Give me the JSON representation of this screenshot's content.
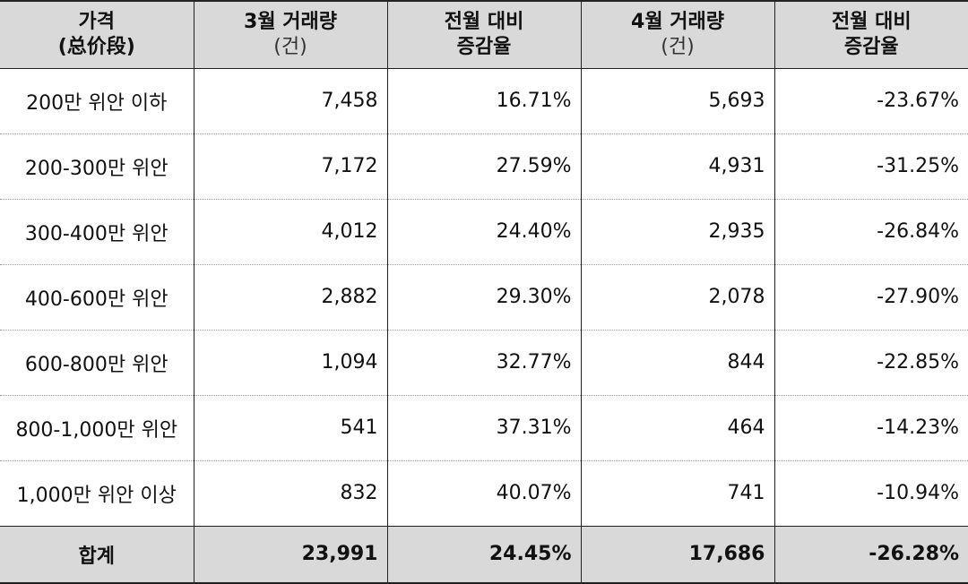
{
  "header": {
    "col0": {
      "line1": "가격",
      "line2": "(总价段)"
    },
    "col1": {
      "line1": "3월 거래량",
      "line2": "(건)"
    },
    "col2": {
      "line1": "전월 대비",
      "line2": "증감율"
    },
    "col3": {
      "line1": "4월 거래량",
      "line2": "(건)"
    },
    "col4": {
      "line1": "전월 대비",
      "line2": "증감율"
    }
  },
  "rows": [
    {
      "label": "200만 위안 이하",
      "mar": "7,458",
      "mar_chg": "16.71%",
      "apr": "5,693",
      "apr_chg": "-23.67%"
    },
    {
      "label": "200-300만 위안",
      "mar": "7,172",
      "mar_chg": "27.59%",
      "apr": "4,931",
      "apr_chg": "-31.25%"
    },
    {
      "label": "300-400만 위안",
      "mar": "4,012",
      "mar_chg": "24.40%",
      "apr": "2,935",
      "apr_chg": "-26.84%"
    },
    {
      "label": "400-600만 위안",
      "mar": "2,882",
      "mar_chg": "29.30%",
      "apr": "2,078",
      "apr_chg": "-27.90%"
    },
    {
      "label": "600-800만 위안",
      "mar": "1,094",
      "mar_chg": "32.77%",
      "apr": "844",
      "apr_chg": "-22.85%"
    },
    {
      "label": "800-1,000만 위안",
      "mar": "541",
      "mar_chg": "37.31%",
      "apr": "464",
      "apr_chg": "-14.23%"
    },
    {
      "label": "1,000만 위안 이상",
      "mar": "832",
      "mar_chg": "40.07%",
      "apr": "741",
      "apr_chg": "-10.94%"
    }
  ],
  "total": {
    "label": "합계",
    "mar": "23,991",
    "mar_chg": "24.45%",
    "apr": "17,686",
    "apr_chg": "-26.28%"
  },
  "colors": {
    "header_bg": "#d9d9d9",
    "border": "#222222",
    "text": "#111111"
  }
}
